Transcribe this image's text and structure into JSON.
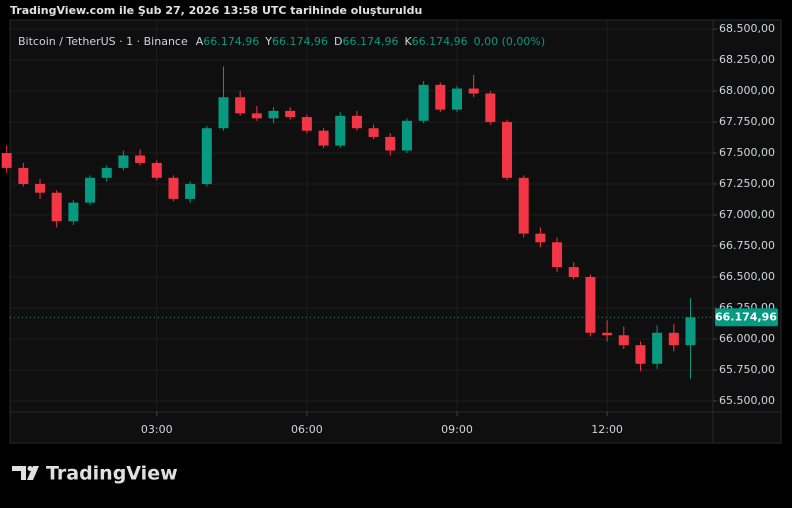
{
  "chart_data": {
    "type": "candlestick",
    "caption": "TradingView.com ile Şub 27, 2026 13:58 UTC tarihinde oluşturuldu",
    "legend": {
      "symbol": "Bitcoin / TetherUS · 1 · Binance",
      "items": [
        {
          "label": "A",
          "value": "66.174,96"
        },
        {
          "label": "Y",
          "value": "66.174,96"
        },
        {
          "label": "D",
          "value": "66.174,96"
        },
        {
          "label": "K",
          "value": "66.174,96"
        }
      ],
      "change": "0,00 (0,00%)"
    },
    "brand": "TradingView",
    "last_price": {
      "value": 66174.96,
      "label": "66.174,96"
    },
    "up_color": "#089981",
    "down_color": "#f23645",
    "x": [
      "00:00",
      "00:20",
      "00:40",
      "01:00",
      "01:20",
      "01:40",
      "02:00",
      "02:20",
      "02:40",
      "03:00",
      "03:20",
      "03:40",
      "04:00",
      "04:20",
      "04:40",
      "05:00",
      "05:20",
      "05:40",
      "06:00",
      "06:20",
      "06:40",
      "07:00",
      "07:20",
      "07:40",
      "08:00",
      "08:20",
      "08:40",
      "09:00",
      "09:20",
      "09:40",
      "10:00",
      "10:20",
      "10:40",
      "11:00",
      "11:20",
      "11:40",
      "12:00",
      "12:20",
      "12:40",
      "13:00",
      "13:20",
      "13:40"
    ],
    "open": [
      67500,
      67380,
      67250,
      67180,
      66950,
      67100,
      67300,
      67380,
      67480,
      67420,
      67300,
      67130,
      67250,
      67700,
      67950,
      67820,
      67780,
      67840,
      67790,
      67680,
      67560,
      67800,
      67700,
      67630,
      67520,
      67760,
      68050,
      67850,
      68020,
      67980,
      67750,
      67300,
      66850,
      66780,
      66580,
      66500,
      66050,
      66030,
      65950,
      65800,
      66050,
      65950
    ],
    "high": [
      67560,
      67420,
      67290,
      67200,
      67120,
      67320,
      67400,
      67520,
      67530,
      67440,
      67320,
      67270,
      67720,
      68200,
      68000,
      67880,
      67870,
      67870,
      67810,
      67700,
      67830,
      67840,
      67730,
      67660,
      67780,
      68080,
      68070,
      68040,
      68130,
      68000,
      67770,
      67320,
      66900,
      66820,
      66620,
      66520,
      66150,
      66100,
      65980,
      66110,
      66120,
      66330
    ],
    "low": [
      67340,
      67230,
      67130,
      66900,
      66920,
      67080,
      67270,
      67360,
      67400,
      67280,
      67110,
      67100,
      67230,
      67680,
      67800,
      67760,
      67740,
      67770,
      67660,
      67540,
      67540,
      67680,
      67610,
      67480,
      67500,
      67740,
      67830,
      67830,
      67950,
      67730,
      67280,
      66820,
      66740,
      66540,
      66480,
      66020,
      65980,
      65920,
      65740,
      65760,
      65900,
      65680
    ],
    "close": [
      67380,
      67250,
      67180,
      66950,
      67100,
      67300,
      67380,
      67480,
      67420,
      67300,
      67130,
      67250,
      67700,
      67950,
      67820,
      67780,
      67840,
      67790,
      67680,
      67560,
      67800,
      67700,
      67630,
      67520,
      67760,
      68050,
      67850,
      68020,
      67980,
      67750,
      67300,
      66850,
      66780,
      66580,
      66500,
      66050,
      66030,
      65950,
      65800,
      66050,
      65950,
      66174.96
    ],
    "xlim": [
      "00:04",
      "14:07"
    ],
    "xticks": [
      "03:00",
      "06:00",
      "09:00",
      "12:00"
    ],
    "ylim": [
      65411,
      68573
    ],
    "yticks": [
      {
        "value": 68500,
        "label": "68.500,00"
      },
      {
        "value": 68250,
        "label": "68.250,00"
      },
      {
        "value": 68000,
        "label": "68.000,00"
      },
      {
        "value": 67750,
        "label": "67.750,00"
      },
      {
        "value": 67500,
        "label": "67.500,00"
      },
      {
        "value": 67250,
        "label": "67.250,00"
      },
      {
        "value": 67000,
        "label": "67.000,00"
      },
      {
        "value": 66750,
        "label": "66.750,00"
      },
      {
        "value": 66500,
        "label": "66.500,00"
      },
      {
        "value": 66250,
        "label": "66.250,00"
      },
      {
        "value": 66000,
        "label": "66.000,00"
      },
      {
        "value": 65750,
        "label": "65.750,00"
      },
      {
        "value": 65500,
        "label": "65.500,00"
      }
    ],
    "grid": true
  }
}
